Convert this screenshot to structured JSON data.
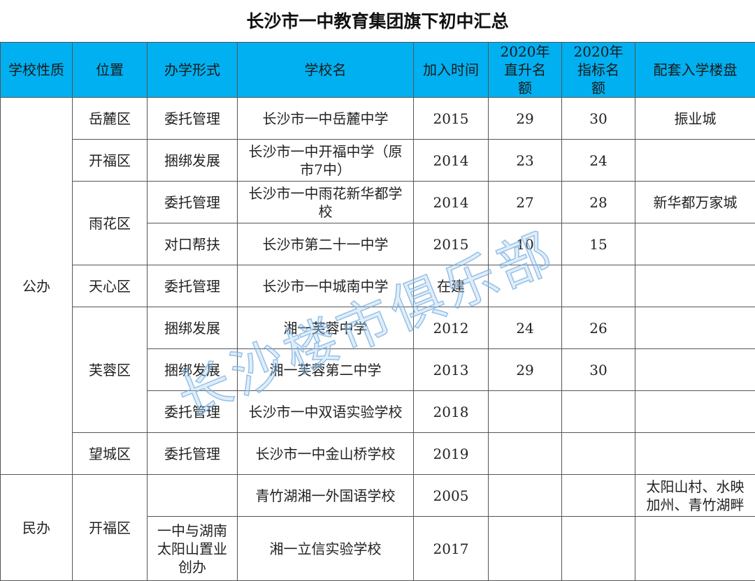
{
  "title": "长沙市一中教育集团旗下初中汇总",
  "watermark": "长沙楼市俱乐部",
  "colors": {
    "header_bg": "#00b0f0"
  },
  "headers": [
    "学校性质",
    "位置",
    "办学形式",
    "学校名",
    "加入时间",
    "2020年直升名额",
    "2020年指标名额",
    "配套入学楼盘"
  ],
  "groups": {
    "public": "公办",
    "private": "民办"
  },
  "districts": {
    "yuelu": "岳麓区",
    "kaifu": "开福区",
    "yuhua": "雨花区",
    "tianxin": "天心区",
    "furong": "芙蓉区",
    "wangcheng": "望城区",
    "kaifu2": "开福区"
  },
  "rows": [
    {
      "form": "委托管理",
      "school": "长沙市一中岳麓中学",
      "year": "2015",
      "direct": "29",
      "quota": "30",
      "estate": "振业城"
    },
    {
      "form": "捆绑发展",
      "school": "长沙市一中开福中学（原市7中）",
      "year": "2014",
      "direct": "23",
      "quota": "24",
      "estate": ""
    },
    {
      "form": "委托管理",
      "school": "长沙市一中雨花新华都学校",
      "year": "2014",
      "direct": "27",
      "quota": "28",
      "estate": "新华都万家城"
    },
    {
      "form": "对口帮扶",
      "school": "长沙市第二十一中学",
      "year": "2015",
      "direct": "10",
      "quota": "15",
      "estate": ""
    },
    {
      "form": "委托管理",
      "school": "长沙市一中城南中学",
      "year": "在建",
      "direct": "",
      "quota": "",
      "estate": ""
    },
    {
      "form": "捆绑发展",
      "school": "湘一芙蓉中学",
      "year": "2012",
      "direct": "24",
      "quota": "26",
      "estate": ""
    },
    {
      "form": "捆绑发展",
      "school": "湘一芙蓉第二中学",
      "year": "2013",
      "direct": "29",
      "quota": "30",
      "estate": ""
    },
    {
      "form": "委托管理",
      "school": "长沙市一中双语实验学校",
      "year": "2018",
      "direct": "",
      "quota": "",
      "estate": ""
    },
    {
      "form": "委托管理",
      "school": "长沙市一中金山桥学校",
      "year": "2019",
      "direct": "",
      "quota": "",
      "estate": ""
    },
    {
      "form": "",
      "school": "青竹湖湘一外国语学校",
      "year": "2005",
      "direct": "",
      "quota": "",
      "estate": "太阳山村、水映加州、青竹湖畔"
    },
    {
      "form": "一中与湖南太阳山置业创办",
      "school": "湘一立信实验学校",
      "year": "2017",
      "direct": "",
      "quota": "",
      "estate": ""
    }
  ]
}
